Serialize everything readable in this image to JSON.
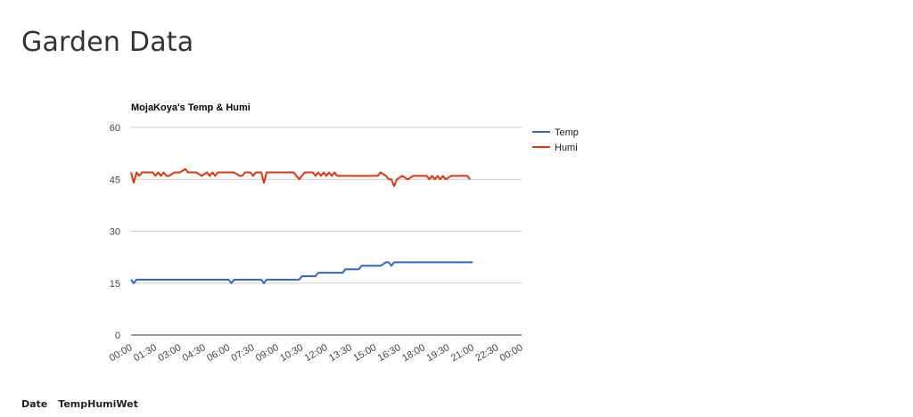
{
  "page": {
    "title": "Garden Data"
  },
  "table": {
    "headers": [
      "Date",
      "Temp",
      "Humi",
      "Wet"
    ]
  },
  "colors": {
    "temp": "#3366cc",
    "humi": "#dc3912",
    "grid": "#cccccc",
    "axis": "#333333",
    "text": "#444444"
  },
  "chart_data": {
    "type": "line",
    "title": "MojaKoya's Temp & Humi",
    "xlabel": "",
    "ylabel": "",
    "ylim": [
      0,
      60
    ],
    "yticks": [
      0,
      15,
      30,
      45,
      60
    ],
    "xlim": [
      "00:00",
      "24:00"
    ],
    "xticks": [
      "00:00",
      "01:30",
      "03:00",
      "04:30",
      "06:00",
      "07:30",
      "09:00",
      "10:30",
      "12:00",
      "13:30",
      "15:00",
      "16:30",
      "18:00",
      "19:30",
      "21:00",
      "22:30",
      "00:00"
    ],
    "grid": true,
    "legend_position": "right",
    "series": [
      {
        "name": "Temp",
        "x": [
          "00:00",
          "00:10",
          "00:20",
          "00:40",
          "01:00",
          "02:00",
          "03:00",
          "04:00",
          "05:00",
          "06:00",
          "06:10",
          "06:20",
          "06:40",
          "07:00",
          "08:00",
          "08:10",
          "08:20",
          "08:40",
          "09:00",
          "10:00",
          "10:20",
          "10:30",
          "11:20",
          "11:30",
          "12:00",
          "12:30",
          "13:00",
          "13:10",
          "13:30",
          "14:00",
          "14:10",
          "15:00",
          "15:20",
          "15:40",
          "15:50",
          "16:00",
          "16:10",
          "16:20",
          "16:40",
          "17:00",
          "18:00",
          "19:00",
          "20:00",
          "21:00"
        ],
        "values": [
          16,
          15,
          16,
          16,
          16,
          16,
          16,
          16,
          16,
          16,
          15,
          16,
          16,
          16,
          16,
          15,
          16,
          16,
          16,
          16,
          16,
          17,
          17,
          18,
          18,
          18,
          18,
          19,
          19,
          19,
          20,
          20,
          20,
          21,
          21,
          20,
          21,
          21,
          21,
          21,
          21,
          21,
          21,
          21
        ]
      },
      {
        "name": "Humi",
        "x": [
          "00:00",
          "00:10",
          "00:20",
          "00:30",
          "00:40",
          "01:00",
          "01:20",
          "01:30",
          "01:40",
          "01:50",
          "02:00",
          "02:10",
          "02:20",
          "02:40",
          "03:00",
          "03:20",
          "03:30",
          "03:40",
          "04:00",
          "04:20",
          "04:40",
          "04:50",
          "05:00",
          "05:10",
          "05:20",
          "05:40",
          "06:00",
          "06:20",
          "06:40",
          "06:50",
          "07:00",
          "07:20",
          "07:30",
          "07:40",
          "08:00",
          "08:10",
          "08:20",
          "08:40",
          "09:00",
          "10:00",
          "10:10",
          "10:20",
          "10:40",
          "11:00",
          "11:10",
          "11:20",
          "11:30",
          "11:40",
          "11:50",
          "12:00",
          "12:10",
          "12:20",
          "12:30",
          "12:40",
          "13:00",
          "14:00",
          "15:00",
          "15:10",
          "15:20",
          "15:40",
          "15:50",
          "16:00",
          "16:10",
          "16:20",
          "16:40",
          "17:00",
          "17:20",
          "17:40",
          "18:00",
          "18:10",
          "18:20",
          "18:30",
          "18:40",
          "18:50",
          "19:00",
          "19:10",
          "19:20",
          "19:40",
          "20:00",
          "20:20",
          "20:40",
          "20:50"
        ],
        "values": [
          47,
          44,
          47,
          46,
          47,
          47,
          47,
          46,
          47,
          46,
          47,
          46,
          46,
          47,
          47,
          48,
          47,
          47,
          47,
          46,
          47,
          46,
          47,
          46,
          47,
          47,
          47,
          47,
          46,
          46,
          47,
          47,
          46,
          47,
          47,
          44,
          47,
          47,
          47,
          47,
          46,
          45,
          47,
          47,
          47,
          46,
          47,
          46,
          47,
          46,
          47,
          46,
          47,
          46,
          46,
          46,
          46,
          46,
          47,
          46,
          45,
          45,
          43,
          45,
          46,
          45,
          46,
          46,
          46,
          46,
          45,
          46,
          45,
          46,
          45,
          46,
          45,
          46,
          46,
          46,
          46,
          45
        ]
      }
    ]
  }
}
